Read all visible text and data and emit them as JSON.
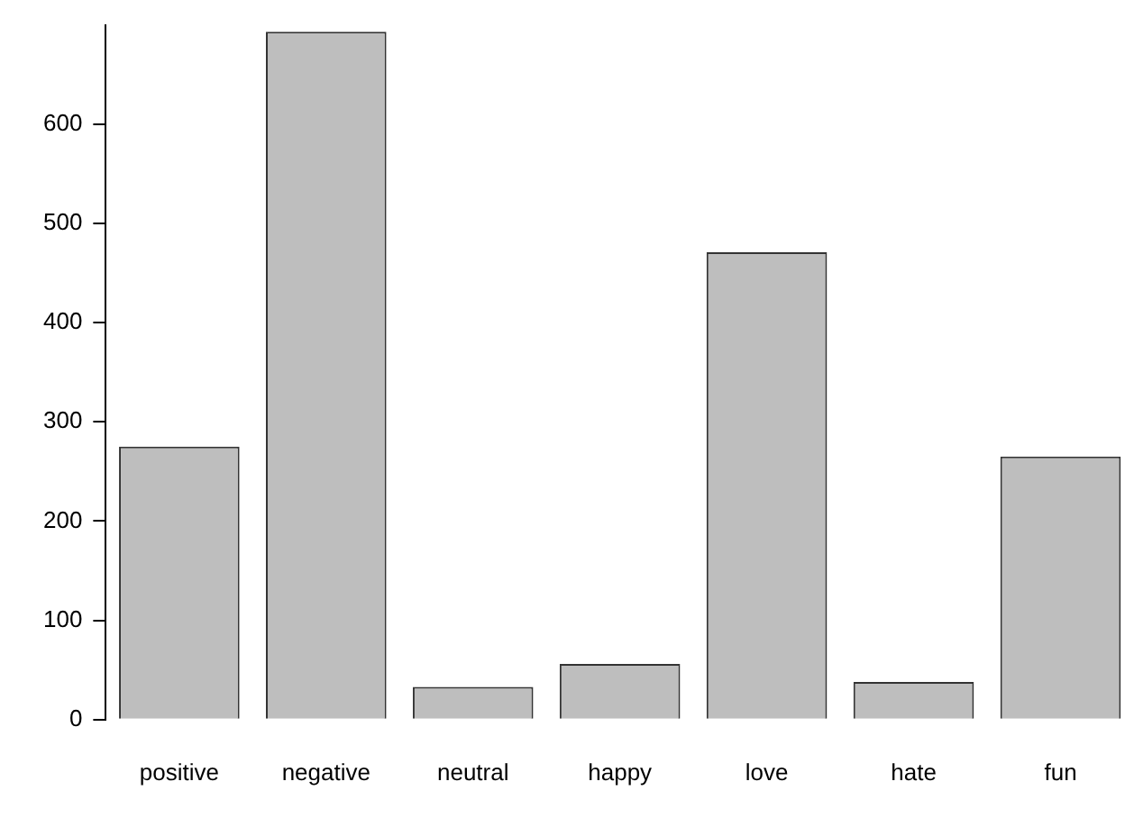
{
  "chart_data": {
    "type": "bar",
    "categories": [
      "positive",
      "negative",
      "neutral",
      "happy",
      "love",
      "hate",
      "fun"
    ],
    "values": [
      275,
      693,
      33,
      56,
      471,
      38,
      265
    ],
    "color": "#bebebe",
    "ylim": [
      0,
      700
    ],
    "yticks": [
      0,
      100,
      200,
      300,
      400,
      500,
      600
    ],
    "grid": false
  }
}
